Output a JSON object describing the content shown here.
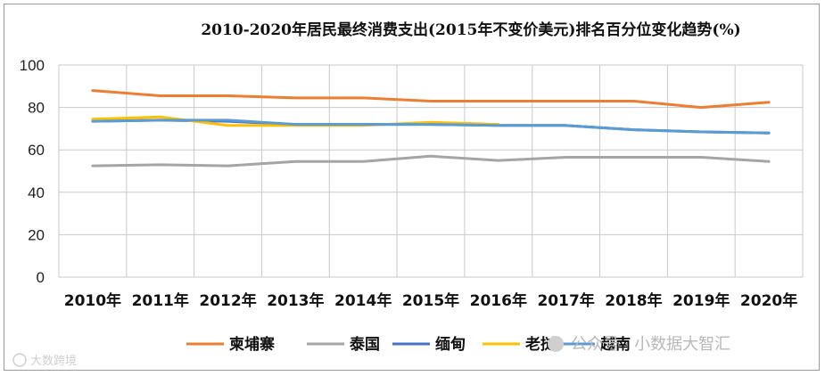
{
  "chart_data": {
    "type": "line",
    "title": "2010-2020年居民最终消费支出(2015年不变价美元)排名百分位变化趋势(%)",
    "categories": [
      "2010年",
      "2011年",
      "2012年",
      "2013年",
      "2014年",
      "2015年",
      "2016年",
      "2017年",
      "2018年",
      "2019年",
      "2020年"
    ],
    "ylim": [
      0,
      100
    ],
    "yticks": [
      "0",
      "20",
      "40",
      "60",
      "80",
      "100"
    ],
    "grid": true,
    "legend_position": "bottom",
    "series": [
      {
        "name": "柬埔寨",
        "color": "#ed7d31",
        "values": [
          88,
          85.5,
          85.5,
          84.5,
          84.5,
          83,
          83,
          83,
          83,
          80,
          82.5
        ]
      },
      {
        "name": "泰国",
        "color": "#a5a5a5",
        "values": [
          52.5,
          53,
          52.5,
          54.5,
          54.5,
          57,
          55,
          56.5,
          56.5,
          56.5,
          54.5
        ]
      },
      {
        "name": "缅甸",
        "color": "#4472c4",
        "values": [
          73.5,
          74,
          73.5,
          72,
          72,
          72,
          71.5,
          71.5,
          69.5,
          68.5,
          68
        ]
      },
      {
        "name": "老挝",
        "color": "#ffc000",
        "values": [
          74.5,
          75.5,
          71.5,
          71.5,
          71.5,
          73,
          72,
          null,
          null,
          null,
          null
        ]
      },
      {
        "name": "越南",
        "color": "#5b9bd5",
        "values": [
          73.5,
          74,
          74,
          72,
          72,
          72,
          71.5,
          71.5,
          69.5,
          68.5,
          68
        ]
      }
    ]
  },
  "watermark": {
    "right_text": "公众号 · 小数据大智汇",
    "left_text": "大数跨境"
  }
}
